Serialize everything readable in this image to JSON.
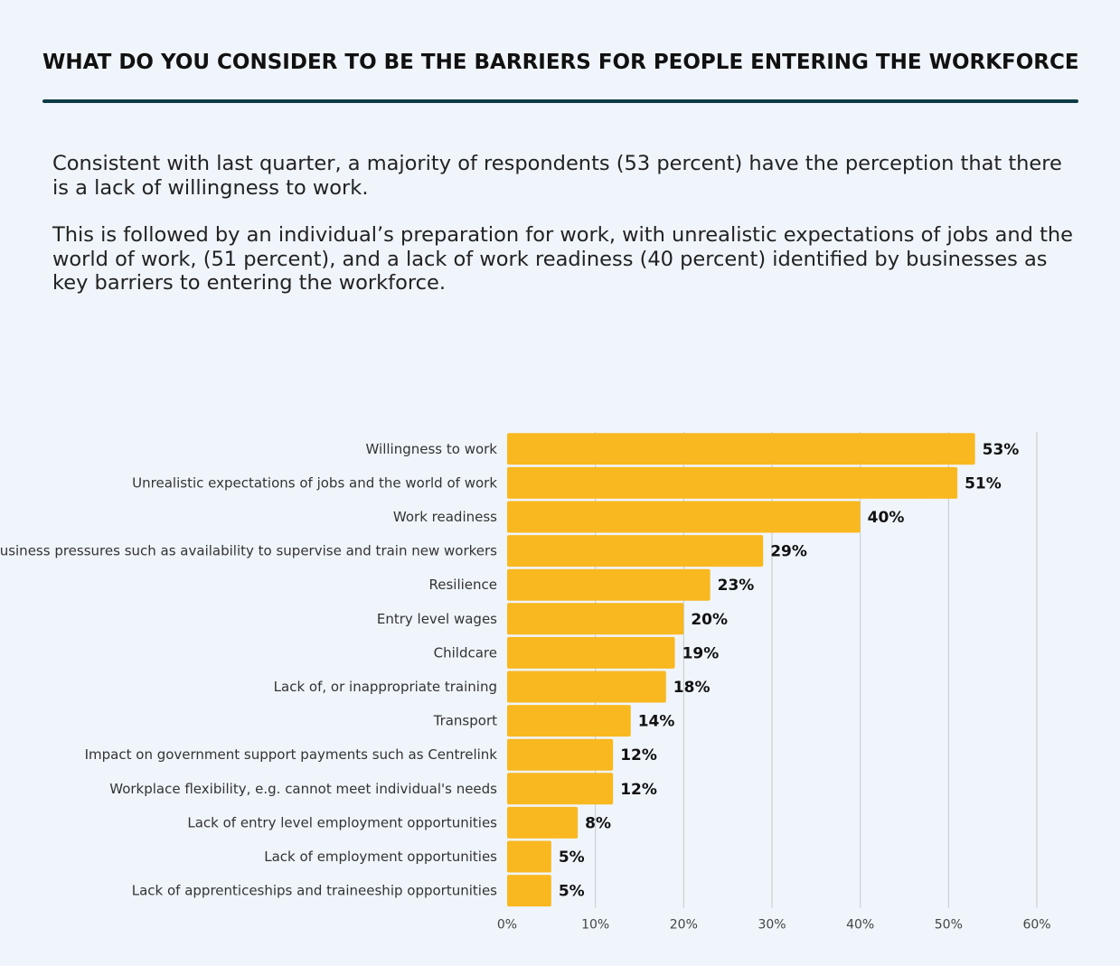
{
  "header": {
    "title": "WHAT DO YOU CONSIDER TO BE THE BARRIERS FOR PEOPLE ENTERING THE WORKFORCE"
  },
  "intro": {
    "paragraph_1": "Consistent with last quarter, a majority of respondents (53 percent) have the perception that there is a lack of willingness to work.",
    "paragraph_2": "This is followed by  an individual’s preparation for work, with unrealistic expectations of jobs and the world of work, (51 percent), and a lack of work readiness (40 percent) identified by businesses as key barriers to entering the workforce."
  },
  "colors": {
    "bar": "#f9b820",
    "gridline": "#c4c8cc",
    "title_rule": "#0c3c46",
    "background": "#eff5fa"
  },
  "chart_data": {
    "type": "bar",
    "orientation": "horizontal",
    "categories": [
      "Willingness to work",
      "Unrealistic expectations of jobs and the world of work",
      "Work readiness",
      "Business pressures such as availability to supervise and train new workers",
      "Resilience",
      "Entry level wages",
      "Childcare",
      "Lack of, or inappropriate training",
      "Transport",
      "Impact on government support payments such as Centrelink",
      "Workplace flexibility, e.g. cannot meet individual's needs",
      "Lack of entry level employment opportunities",
      "Lack of employment opportunities",
      "Lack of apprenticeships and traineeship opportunities"
    ],
    "values": [
      53,
      51,
      40,
      29,
      23,
      20,
      19,
      18,
      14,
      12,
      12,
      8,
      5,
      5
    ],
    "data_labels": [
      "53%",
      "51%",
      "40%",
      "29%",
      "23%",
      "20%",
      "19%",
      "18%",
      "14%",
      "12%",
      "12%",
      "8%",
      "5%",
      "5%"
    ],
    "xlim": [
      0,
      60
    ],
    "xticks": [
      0,
      10,
      20,
      30,
      40,
      50,
      60
    ],
    "xtick_labels": [
      "0%",
      "10%",
      "20%",
      "30%",
      "40%",
      "50%",
      "60%"
    ],
    "grid": true,
    "legend": "none"
  }
}
